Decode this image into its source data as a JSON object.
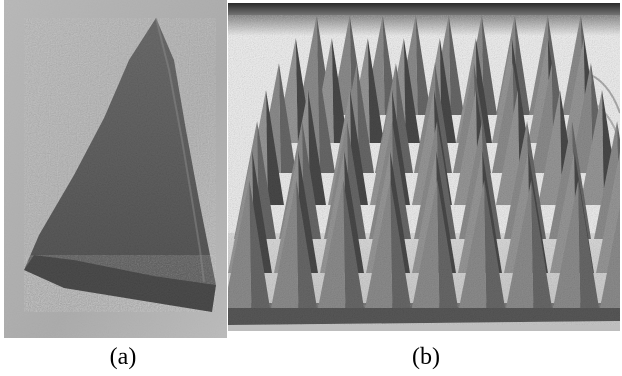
{
  "panels": [
    {
      "caption": "(a)",
      "subject": "single-foam-pyramid-photo",
      "colors": {
        "background": "#b9b9b9",
        "foam": "#5f5f5f",
        "foam_dark": "#3f3f3f",
        "foam_light": "#8a8a8a"
      }
    },
    {
      "caption": "(b)",
      "subject": "pyramidal-foam-absorber-array-photo",
      "colors": {
        "background_wall": "#f2f2f2",
        "floor": "#c9c9c9",
        "foam_base": "#6a6a6a",
        "foam_light": "#9a9a9a",
        "foam_dark": "#4a4a4a"
      }
    }
  ]
}
